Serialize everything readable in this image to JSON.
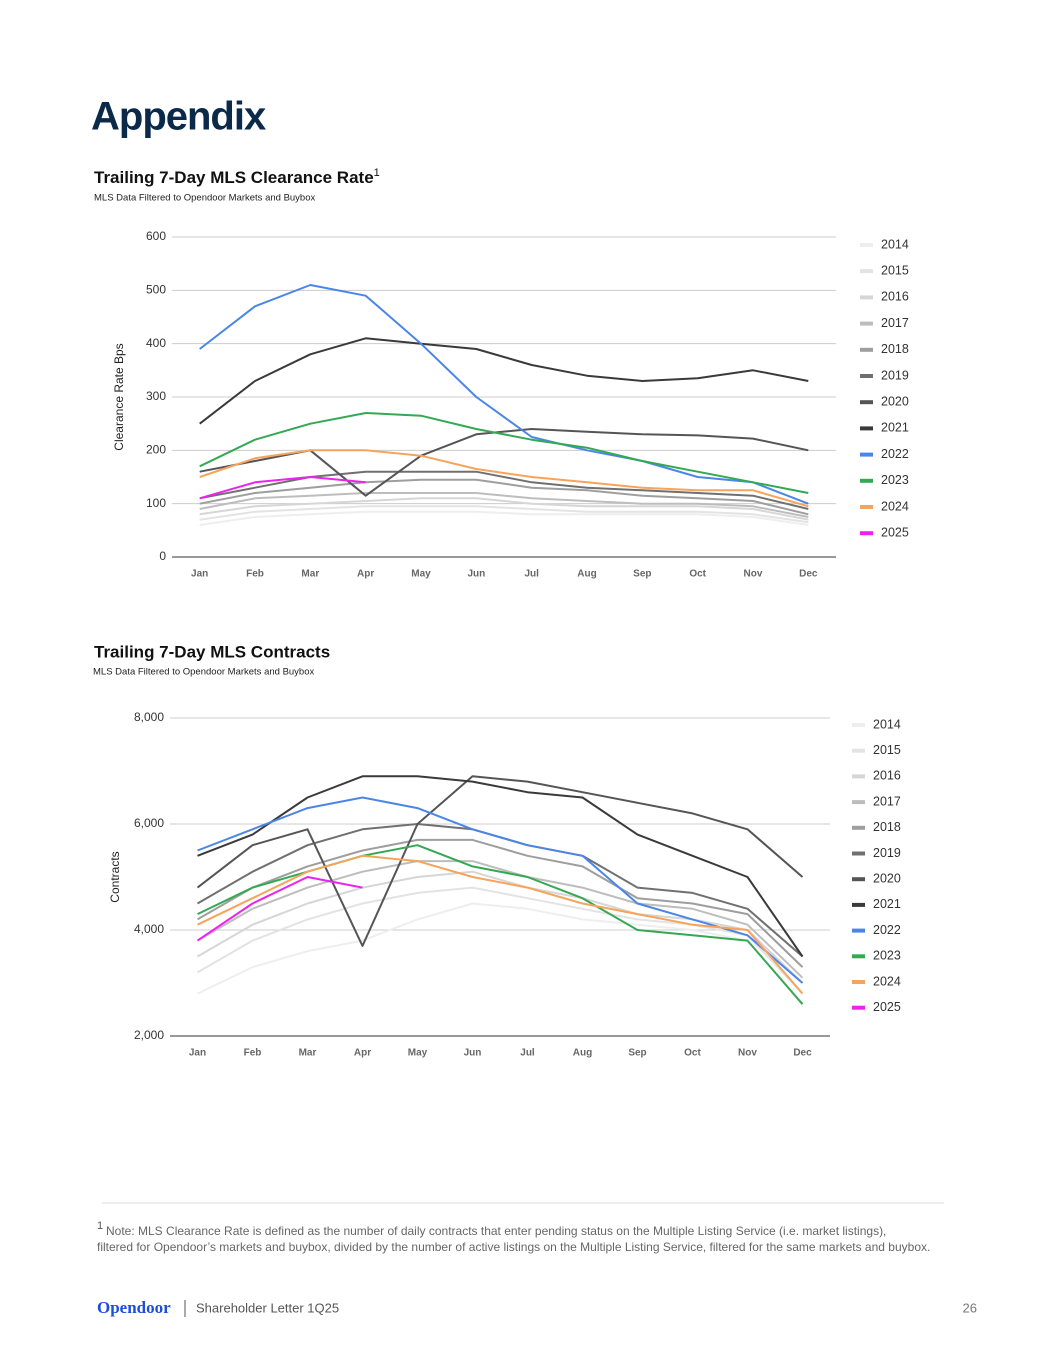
{
  "page": {
    "title": "Appendix",
    "footnote_marker": "1",
    "footnote_lines": [
      "Note: MLS Clearance Rate is defined as the number of daily contracts that enter pending status on the Multiple Listing Service (i.e. market listings),",
      "filtered for Opendoor’s markets and buybox, divided by the number of active listings on the Multiple Listing Service, filtered for the same markets and buybox."
    ],
    "footer_brand": "Opendoor",
    "footer_text": "Shareholder Letter 1Q25",
    "page_number": "26"
  },
  "chart_data": [
    {
      "type": "line",
      "title": "Trailing 7-Day MLS Clearance Rate",
      "title_note": "1",
      "subtitle": "MLS Data Filtered to Opendoor Markets and Buybox",
      "y_label": "Clearance Rate Bps",
      "categories": [
        "Jan",
        "Feb",
        "Mar",
        "Apr",
        "May",
        "Jun",
        "Jul",
        "Aug",
        "Sep",
        "Oct",
        "Nov",
        "Dec"
      ],
      "ylim": [
        0,
        600
      ],
      "yticks": [
        0,
        100,
        200,
        300,
        400,
        500,
        600
      ],
      "grid": true,
      "legend": "right",
      "series": [
        {
          "name": "2014",
          "color": "#eeeeee",
          "values": [
            60,
            75,
            80,
            85,
            85,
            85,
            80,
            80,
            80,
            80,
            75,
            60
          ]
        },
        {
          "name": "2015",
          "color": "#e3e3e3",
          "values": [
            70,
            85,
            90,
            95,
            95,
            95,
            90,
            85,
            85,
            85,
            80,
            65
          ]
        },
        {
          "name": "2016",
          "color": "#d6d6d6",
          "values": [
            80,
            95,
            100,
            105,
            110,
            110,
            100,
            95,
            95,
            95,
            90,
            70
          ]
        },
        {
          "name": "2017",
          "color": "#bdbdbd",
          "values": [
            90,
            110,
            115,
            120,
            120,
            120,
            110,
            105,
            100,
            100,
            95,
            75
          ]
        },
        {
          "name": "2018",
          "color": "#9e9e9e",
          "values": [
            100,
            120,
            130,
            140,
            145,
            145,
            130,
            125,
            115,
            110,
            105,
            80
          ]
        },
        {
          "name": "2019",
          "color": "#707070",
          "values": [
            110,
            130,
            150,
            160,
            160,
            160,
            140,
            130,
            125,
            120,
            115,
            90
          ]
        },
        {
          "name": "2020",
          "color": "#555555",
          "values": [
            160,
            180,
            200,
            115,
            190,
            230,
            240,
            235,
            230,
            228,
            222,
            200
          ]
        },
        {
          "name": "2021",
          "color": "#3a3a3a",
          "values": [
            250,
            330,
            380,
            410,
            400,
            390,
            360,
            340,
            330,
            335,
            350,
            330
          ]
        },
        {
          "name": "2022",
          "color": "#4a86e8",
          "values": [
            390,
            470,
            510,
            490,
            400,
            300,
            225,
            200,
            180,
            150,
            140,
            100
          ]
        },
        {
          "name": "2023",
          "color": "#34a853",
          "values": [
            170,
            220,
            250,
            270,
            265,
            240,
            220,
            205,
            180,
            160,
            140,
            120
          ]
        },
        {
          "name": "2024",
          "color": "#f6a45c",
          "values": [
            150,
            185,
            200,
            200,
            190,
            165,
            150,
            140,
            130,
            125,
            125,
            95
          ]
        },
        {
          "name": "2025",
          "color": "#ee22ee",
          "values": [
            110,
            140,
            150,
            140,
            null,
            null,
            null,
            null,
            null,
            null,
            null,
            null
          ]
        }
      ]
    },
    {
      "type": "line",
      "title": "Trailing 7-Day MLS Contracts",
      "subtitle": "MLS Data Filtered to Opendoor Markets and Buybox",
      "y_label": "Contracts",
      "categories": [
        "Jan",
        "Feb",
        "Mar",
        "Apr",
        "May",
        "Jun",
        "Jul",
        "Aug",
        "Sep",
        "Oct",
        "Nov",
        "Dec"
      ],
      "ylim": [
        2000,
        8000
      ],
      "yticks": [
        {
          "value": 2000,
          "label": "2,000"
        },
        {
          "value": 4000,
          "label": "4,000"
        },
        {
          "value": 6000,
          "label": "6,000"
        },
        {
          "value": 8000,
          "label": "8,000"
        }
      ],
      "grid": true,
      "legend": "right",
      "series": [
        {
          "name": "2014",
          "color": "#eeeeee",
          "values": [
            2800,
            3300,
            3600,
            3800,
            4200,
            4500,
            4400,
            4200,
            4100,
            4000,
            3800,
            2600
          ]
        },
        {
          "name": "2015",
          "color": "#e3e3e3",
          "values": [
            3200,
            3800,
            4200,
            4500,
            4700,
            4800,
            4600,
            4400,
            4200,
            4100,
            3900,
            2800
          ]
        },
        {
          "name": "2016",
          "color": "#d6d6d6",
          "values": [
            3500,
            4100,
            4500,
            4800,
            5000,
            5100,
            4800,
            4600,
            4300,
            4200,
            4000,
            3000
          ]
        },
        {
          "name": "2017",
          "color": "#bdbdbd",
          "values": [
            3800,
            4400,
            4800,
            5100,
            5300,
            5300,
            5000,
            4800,
            4500,
            4400,
            4100,
            3100
          ]
        },
        {
          "name": "2018",
          "color": "#9e9e9e",
          "values": [
            4200,
            4800,
            5200,
            5500,
            5700,
            5700,
            5400,
            5200,
            4600,
            4500,
            4300,
            3300
          ]
        },
        {
          "name": "2019",
          "color": "#707070",
          "values": [
            4500,
            5100,
            5600,
            5900,
            6000,
            5900,
            5600,
            5400,
            4800,
            4700,
            4400,
            3500
          ]
        },
        {
          "name": "2020",
          "color": "#555555",
          "values": [
            4800,
            5600,
            5900,
            3700,
            6000,
            6900,
            6800,
            6600,
            6400,
            6200,
            5900,
            5000
          ]
        },
        {
          "name": "2021",
          "color": "#3a3a3a",
          "values": [
            5400,
            5800,
            6500,
            6900,
            6900,
            6800,
            6600,
            6500,
            5800,
            5400,
            5000,
            3500
          ]
        },
        {
          "name": "2022",
          "color": "#4a86e8",
          "values": [
            5500,
            5900,
            6300,
            6500,
            6300,
            5900,
            5600,
            5400,
            4500,
            4200,
            3900,
            3000
          ]
        },
        {
          "name": "2023",
          "color": "#34a853",
          "values": [
            4300,
            4800,
            5100,
            5400,
            5600,
            5200,
            5000,
            4600,
            4000,
            3900,
            3800,
            2600
          ]
        },
        {
          "name": "2024",
          "color": "#f6a45c",
          "values": [
            4100,
            4600,
            5100,
            5400,
            5300,
            5000,
            4800,
            4500,
            4300,
            4100,
            4000,
            2800
          ]
        },
        {
          "name": "2025",
          "color": "#ee22ee",
          "values": [
            3800,
            4500,
            5000,
            4800,
            null,
            null,
            null,
            null,
            null,
            null,
            null,
            null
          ]
        }
      ]
    }
  ]
}
